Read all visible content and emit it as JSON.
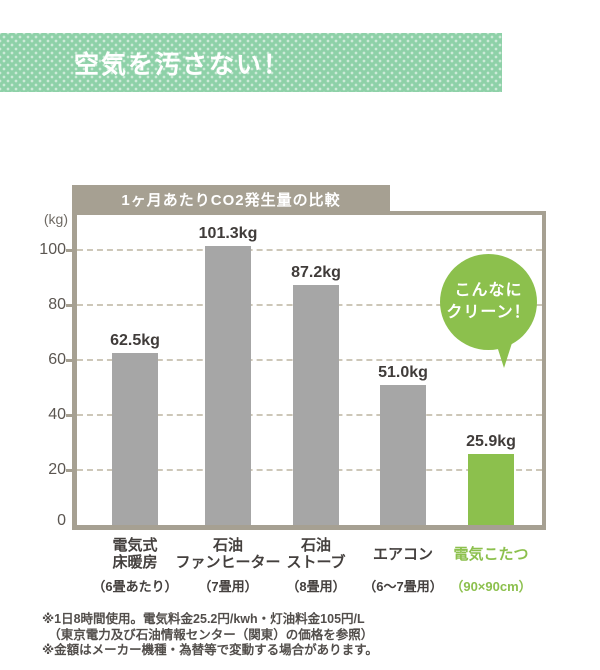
{
  "header": {
    "title": "空気を汚さない！"
  },
  "chart_data": {
    "type": "bar",
    "title": "1ヶ月あたりCO2発生量の比較",
    "ylabel": "(kg)",
    "ylim": [
      0,
      112
    ],
    "yticks": [
      0,
      20,
      40,
      60,
      80,
      100
    ],
    "grid": "horizontal-dashed",
    "categories": [
      "電気式\n床暖房",
      "石油\nファンヒーター",
      "石油\nストーブ",
      "エアコン",
      "電気こたつ"
    ],
    "sub_labels": [
      "（6畳あたり）",
      "（7畳用）",
      "（8畳用）",
      "（6～7畳用）",
      "（90×90cm）"
    ],
    "values": [
      62.5,
      101.3,
      87.2,
      51.0,
      25.9
    ],
    "value_labels": [
      "62.5kg",
      "101.3kg",
      "87.2kg",
      "51.0kg",
      "25.9kg"
    ],
    "highlight_index": 4,
    "annotation": "こんなに\nクリーン！",
    "legend": "none"
  },
  "colors": {
    "banner_green": "#8ed1a8",
    "accent_green": "#8cc04d",
    "bar_gray": "#a6a6a6",
    "frame_tan": "#a6a092",
    "grid_tan": "#cdc7b8",
    "text_dark": "#44403e"
  },
  "footnotes": [
    "※1日8時間使用。電気料金25.2円/kwh・灯油料金105円/L",
    "　（東京電力及び石油情報センター（関東）の価格を参照）",
    "※金額はメーカー機種・為替等で変動する場合があります。"
  ]
}
